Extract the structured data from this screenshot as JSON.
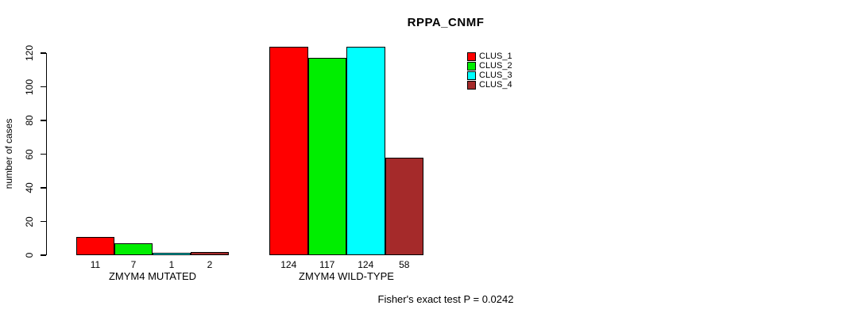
{
  "chart_data": {
    "type": "bar",
    "title": "RPPA_CNMF",
    "xlabel": "",
    "ylabel": "number of cases",
    "ylim": [
      0,
      120
    ],
    "yticks": [
      0,
      20,
      40,
      60,
      80,
      100,
      120
    ],
    "grid": false,
    "legend_position": "top-right",
    "categories": [
      "ZMYM4 MUTATED",
      "ZMYM4 WILD-TYPE"
    ],
    "series": [
      {
        "name": "CLUS_1",
        "color": "#FF0000",
        "values": [
          11,
          124
        ]
      },
      {
        "name": "CLUS_2",
        "color": "#00EE00",
        "values": [
          7,
          117
        ]
      },
      {
        "name": "CLUS_3",
        "color": "#00FFFF",
        "values": [
          1,
          124
        ]
      },
      {
        "name": "CLUS_4",
        "color": "#A52A2A",
        "values": [
          2,
          58
        ]
      }
    ],
    "bar_value_labels": [
      [
        11,
        7,
        1,
        2
      ],
      [
        124,
        117,
        124,
        58
      ]
    ],
    "footnote": "Fisher's exact test P = 0.0242"
  }
}
